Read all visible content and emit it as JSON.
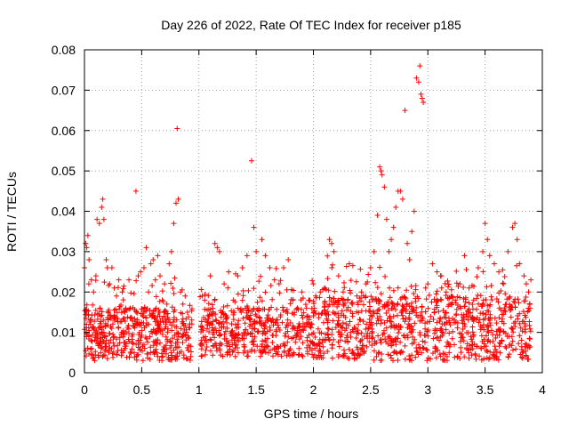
{
  "chart_data": {
    "type": "scatter",
    "title": "Day 226 of 2022, Rate Of TEC Index for receiver p185",
    "xlabel": "GPS time / hours",
    "ylabel": "ROTI / TECUs",
    "xlim": [
      0,
      4
    ],
    "ylim": [
      0,
      0.08
    ],
    "grid": true,
    "marker": "+",
    "series_color": "#ff0000",
    "x_ticks": [
      {
        "value": 0,
        "label": "0"
      },
      {
        "value": 0.5,
        "label": "0.5"
      },
      {
        "value": 1,
        "label": "1"
      },
      {
        "value": 1.5,
        "label": "1.5"
      },
      {
        "value": 2,
        "label": "2"
      },
      {
        "value": 2.5,
        "label": "2.5"
      },
      {
        "value": 3,
        "label": "3"
      },
      {
        "value": 3.5,
        "label": "3.5"
      },
      {
        "value": 4,
        "label": "4"
      }
    ],
    "y_ticks": [
      {
        "value": 0,
        "label": "0"
      },
      {
        "value": 0.01,
        "label": "0.01"
      },
      {
        "value": 0.02,
        "label": "0.02"
      },
      {
        "value": 0.03,
        "label": "0.03"
      },
      {
        "value": 0.04,
        "label": "0.04"
      },
      {
        "value": 0.05,
        "label": "0.05"
      },
      {
        "value": 0.06,
        "label": "0.06"
      },
      {
        "value": 0.07,
        "label": "0.07"
      },
      {
        "value": 0.08,
        "label": "0.08"
      }
    ],
    "data_gap": [
      0.94,
      1.01
    ],
    "points": [
      [
        0.0,
        0.026
      ],
      [
        0.01,
        0.032
      ],
      [
        0.02,
        0.031
      ],
      [
        0.03,
        0.034
      ],
      [
        0.04,
        0.028
      ],
      [
        0.05,
        0.013
      ],
      [
        0.06,
        0.023
      ],
      [
        0.08,
        0.02
      ],
      [
        0.1,
        0.024
      ],
      [
        0.11,
        0.038
      ],
      [
        0.13,
        0.037
      ],
      [
        0.15,
        0.041
      ],
      [
        0.16,
        0.043
      ],
      [
        0.17,
        0.038
      ],
      [
        0.19,
        0.028
      ],
      [
        0.2,
        0.026
      ],
      [
        0.22,
        0.022
      ],
      [
        0.24,
        0.026
      ],
      [
        0.26,
        0.021
      ],
      [
        0.28,
        0.019
      ],
      [
        0.3,
        0.023
      ],
      [
        0.33,
        0.02
      ],
      [
        0.36,
        0.016
      ],
      [
        0.45,
        0.045
      ],
      [
        0.47,
        0.024
      ],
      [
        0.49,
        0.025
      ],
      [
        0.52,
        0.026
      ],
      [
        0.54,
        0.031
      ],
      [
        0.56,
        0.02
      ],
      [
        0.58,
        0.027
      ],
      [
        0.6,
        0.028
      ],
      [
        0.62,
        0.023
      ],
      [
        0.64,
        0.029
      ],
      [
        0.66,
        0.024
      ],
      [
        0.68,
        0.018
      ],
      [
        0.7,
        0.022
      ],
      [
        0.72,
        0.017
      ],
      [
        0.74,
        0.027
      ],
      [
        0.76,
        0.03
      ],
      [
        0.78,
        0.037
      ],
      [
        0.8,
        0.042
      ],
      [
        0.81,
        0.0605
      ],
      [
        0.82,
        0.043
      ],
      [
        0.84,
        0.02
      ],
      [
        0.86,
        0.017
      ],
      [
        0.88,
        0.019
      ],
      [
        0.9,
        0.015
      ],
      [
        1.03,
        0.019
      ],
      [
        1.05,
        0.018
      ],
      [
        1.1,
        0.024
      ],
      [
        1.14,
        0.032
      ],
      [
        1.16,
        0.031
      ],
      [
        1.18,
        0.03
      ],
      [
        1.22,
        0.022
      ],
      [
        1.26,
        0.025
      ],
      [
        1.3,
        0.018
      ],
      [
        1.34,
        0.024
      ],
      [
        1.38,
        0.026
      ],
      [
        1.42,
        0.029
      ],
      [
        1.46,
        0.0525
      ],
      [
        1.48,
        0.036
      ],
      [
        1.5,
        0.03
      ],
      [
        1.55,
        0.033
      ],
      [
        1.58,
        0.029
      ],
      [
        1.62,
        0.026
      ],
      [
        1.66,
        0.023
      ],
      [
        1.7,
        0.022
      ],
      [
        1.74,
        0.026
      ],
      [
        1.78,
        0.028
      ],
      [
        1.82,
        0.018
      ],
      [
        1.86,
        0.016
      ],
      [
        1.9,
        0.02
      ],
      [
        1.94,
        0.016
      ],
      [
        2.02,
        0.019
      ],
      [
        2.06,
        0.02
      ],
      [
        2.1,
        0.021
      ],
      [
        2.14,
        0.033
      ],
      [
        2.16,
        0.032
      ],
      [
        2.18,
        0.03
      ],
      [
        2.22,
        0.024
      ],
      [
        2.26,
        0.02
      ],
      [
        2.3,
        0.018
      ],
      [
        2.34,
        0.017
      ],
      [
        2.38,
        0.019
      ],
      [
        2.42,
        0.02
      ],
      [
        2.46,
        0.022
      ],
      [
        2.5,
        0.026
      ],
      [
        2.53,
        0.03
      ],
      [
        2.56,
        0.039
      ],
      [
        2.58,
        0.051
      ],
      [
        2.59,
        0.05
      ],
      [
        2.6,
        0.049
      ],
      [
        2.62,
        0.046
      ],
      [
        2.64,
        0.038
      ],
      [
        2.66,
        0.03
      ],
      [
        2.68,
        0.033
      ],
      [
        2.7,
        0.036
      ],
      [
        2.72,
        0.041
      ],
      [
        2.74,
        0.045
      ],
      [
        2.76,
        0.045
      ],
      [
        2.78,
        0.043
      ],
      [
        2.8,
        0.065
      ],
      [
        2.82,
        0.032
      ],
      [
        2.84,
        0.028
      ],
      [
        2.86,
        0.035
      ],
      [
        2.88,
        0.04
      ],
      [
        2.9,
        0.073
      ],
      [
        2.92,
        0.072
      ],
      [
        2.93,
        0.076
      ],
      [
        2.94,
        0.069
      ],
      [
        2.95,
        0.068
      ],
      [
        2.96,
        0.067
      ],
      [
        2.98,
        0.021
      ],
      [
        3.0,
        0.022
      ],
      [
        3.04,
        0.027
      ],
      [
        3.08,
        0.025
      ],
      [
        3.12,
        0.021
      ],
      [
        3.16,
        0.02
      ],
      [
        3.2,
        0.017
      ],
      [
        3.24,
        0.018
      ],
      [
        3.28,
        0.022
      ],
      [
        3.32,
        0.029
      ],
      [
        3.36,
        0.021
      ],
      [
        3.4,
        0.018
      ],
      [
        3.44,
        0.026
      ],
      [
        3.48,
        0.03
      ],
      [
        3.5,
        0.037
      ],
      [
        3.52,
        0.033
      ],
      [
        3.54,
        0.029
      ],
      [
        3.58,
        0.027
      ],
      [
        3.62,
        0.025
      ],
      [
        3.66,
        0.022
      ],
      [
        3.7,
        0.03
      ],
      [
        3.74,
        0.036
      ],
      [
        3.76,
        0.037
      ],
      [
        3.78,
        0.033
      ],
      [
        3.8,
        0.027
      ],
      [
        3.84,
        0.024
      ],
      [
        3.86,
        0.022
      ],
      [
        3.88,
        0.02
      ],
      [
        3.9,
        0.023
      ]
    ]
  }
}
